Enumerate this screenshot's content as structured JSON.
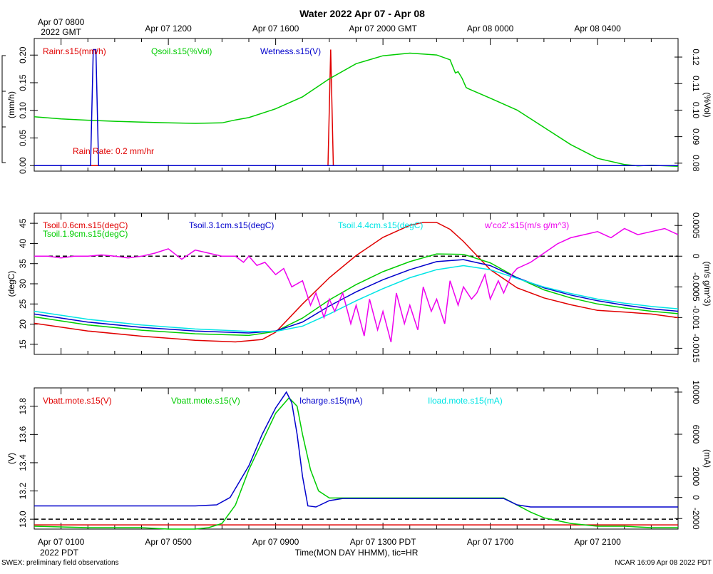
{
  "title": "Water 2022 Apr 07 - Apr 08",
  "top_axis": {
    "first_label_line1": "Apr 07 0800",
    "first_label_line2": "2022 GMT",
    "labels": [
      "Apr 07 1200",
      "Apr 07 1600",
      "Apr 07 2000 GMT",
      "Apr 08 0000",
      "Apr 08 0400"
    ]
  },
  "bottom_axis": {
    "labels": [
      "Apr 07 0100",
      "Apr 07 0500",
      "Apr 07 0900",
      "Apr 07 1300 PDT",
      "Apr 07 1700",
      "Apr 07 2100"
    ],
    "year_label": "2022 PDT",
    "xlabel": "Time(MON DAY HHMM), tic=HR"
  },
  "footer": {
    "left": "SWEX: preliminary field observations",
    "right": "NCAR 16:09 Apr 08 2022 PDT"
  },
  "colors": {
    "red": "#e00000",
    "green": "#00cc00",
    "blue": "#0000cc",
    "cyan": "#00e5e5",
    "magenta": "#ee00ee"
  },
  "chart_data": [
    {
      "type": "line",
      "x_unit": "hours since Apr 07 0000 PDT",
      "xlim": [
        0,
        24
      ],
      "ylabel_left": "(mm/h)",
      "ylabel_right": "(%Vol)",
      "ylim_left": [
        -0.01,
        0.23
      ],
      "ylim_right": [
        0.077,
        0.127
      ],
      "yticks_left": [
        "0.00",
        "0.05",
        "0.10",
        "0.15",
        "0.20"
      ],
      "yticks_right": [
        "0.08",
        "0.09",
        "0.10",
        "0.11",
        "0.12"
      ],
      "annotation": "Rain Rate: 0.2 mm/hr",
      "series": [
        {
          "name": "Rainr.s15(mm/h)",
          "color": "red",
          "axis": "left",
          "x": [
            0,
            10.95,
            11.05,
            11.15,
            24
          ],
          "y": [
            0,
            0,
            0.21,
            0,
            0
          ]
        },
        {
          "name": "Qsoil.s15(%Vol)",
          "color": "green",
          "axis": "right",
          "x": [
            0,
            1,
            2,
            3,
            4,
            5,
            6,
            7,
            7.5,
            8,
            9,
            10,
            11,
            12,
            13,
            14,
            15,
            15.5,
            15.7,
            15.8,
            15.95,
            16.1,
            16.2,
            17,
            18,
            19,
            20,
            21,
            22,
            22.5,
            23,
            24
          ],
          "y": [
            0.0975,
            0.0967,
            0.0962,
            0.0958,
            0.0955,
            0.0952,
            0.095,
            0.0952,
            0.0963,
            0.0972,
            0.1005,
            0.105,
            0.1118,
            0.1175,
            0.1205,
            0.1215,
            0.1208,
            0.119,
            0.114,
            0.1145,
            0.112,
            0.1085,
            0.108,
            0.1045,
            0.1,
            0.0935,
            0.087,
            0.0818,
            0.0795,
            0.079,
            0.0792,
            0.0788
          ]
        },
        {
          "name": "Wetness.s15(V)",
          "color": "blue",
          "axis": "left",
          "x": [
            0,
            2.1,
            2.2,
            2.3,
            2.4,
            24
          ],
          "y": [
            0,
            0,
            0.21,
            0.21,
            0,
            0
          ]
        }
      ]
    },
    {
      "type": "line",
      "x_unit": "hours since Apr 07 0000 PDT",
      "xlim": [
        0,
        24
      ],
      "ylabel_left": "(degC)",
      "ylabel_right": "(m/s g/m^3)",
      "ylim_left": [
        12.5,
        47.5
      ],
      "ylim_right": [
        -0.0016,
        0.0007
      ],
      "yticks_left": [
        "15",
        "20",
        "25",
        "30",
        "35",
        "40",
        "45"
      ],
      "yticks_right": [
        "-0.0015",
        "-0.001",
        "-0.0005",
        "0",
        "0.0005"
      ],
      "reference_line_right": 0,
      "series": [
        {
          "name": "Tsoil.0.6cm.s15(degC)",
          "color": "red",
          "axis": "left",
          "x": [
            0,
            2,
            4,
            6,
            7.5,
            8.5,
            9,
            10,
            11,
            12,
            13,
            14,
            14.5,
            15,
            15.5,
            16,
            17,
            18,
            19,
            20,
            21,
            22,
            23,
            24
          ],
          "y": [
            20.2,
            18.3,
            17,
            16,
            15.6,
            16.2,
            18,
            25,
            31.5,
            37,
            41.5,
            44.5,
            45.2,
            45.2,
            43.5,
            40.5,
            33.5,
            29,
            26.5,
            24.8,
            23.4,
            23,
            22.5,
            21.6
          ]
        },
        {
          "name": "Tsoil.1.9cm.s15(degC)",
          "color": "green",
          "axis": "left",
          "x": [
            0,
            2,
            4,
            6,
            8,
            9,
            10,
            11,
            12,
            13,
            14,
            15,
            16,
            17,
            18,
            19,
            20,
            21,
            22,
            23,
            24
          ],
          "y": [
            21.8,
            19.8,
            18.5,
            17.6,
            17.2,
            18.2,
            21.5,
            26,
            29.8,
            33,
            35.5,
            37.4,
            37.3,
            35.2,
            31.5,
            28.5,
            26.5,
            25,
            24,
            23.2,
            22.6
          ]
        },
        {
          "name": "Tsoil.3.1cm.s15(degC)",
          "color": "blue",
          "axis": "left",
          "x": [
            0,
            2,
            4,
            6,
            8,
            9,
            10,
            11,
            12,
            13,
            14,
            15,
            16,
            17,
            18,
            19,
            20,
            21,
            22,
            23,
            24
          ],
          "y": [
            22.5,
            20.5,
            19.2,
            18.3,
            17.8,
            18.3,
            20.5,
            24.5,
            28,
            31,
            33.5,
            35.5,
            36,
            34.5,
            31.5,
            29,
            27.2,
            25.8,
            24.7,
            23.8,
            23.2
          ]
        },
        {
          "name": "Tsoil.4.4cm.s15(degC)",
          "color": "cyan",
          "axis": "left",
          "x": [
            0,
            2,
            4,
            6,
            8,
            9,
            10,
            11,
            12,
            13,
            14,
            15,
            16,
            17,
            18,
            19,
            20,
            21,
            22,
            23,
            24
          ],
          "y": [
            23.2,
            21.2,
            19.8,
            18.8,
            18.2,
            18.2,
            19.5,
            22.5,
            25.8,
            28.8,
            31.5,
            33.5,
            34.5,
            33.5,
            31.3,
            29.2,
            27.6,
            26.2,
            25.2,
            24.4,
            23.8
          ]
        },
        {
          "name": "w'co2'.s15(m/s g/m^3)",
          "color": "magenta",
          "axis": "right",
          "x": [
            0,
            0.5,
            1,
            1.5,
            2,
            2.5,
            3,
            3.5,
            4,
            4.5,
            5,
            5.5,
            6,
            6.5,
            7,
            7.5,
            7.8,
            8,
            8.3,
            8.6,
            9,
            9.3,
            9.6,
            10,
            10.3,
            10.5,
            10.8,
            11,
            11.2,
            11.5,
            11.8,
            12,
            12.3,
            12.5,
            12.8,
            13,
            13.3,
            13.5,
            13.8,
            14,
            14.3,
            14.5,
            14.8,
            15,
            15.3,
            15.5,
            15.8,
            16,
            16.3,
            16.5,
            16.8,
            17,
            17.3,
            17.5,
            17.8,
            18,
            18.5,
            19,
            19.5,
            20,
            20.5,
            21,
            21.5,
            22,
            22.5,
            23,
            23.5,
            24
          ],
          "y": [
            0,
            0,
            -3e-05,
            0,
            0,
            2e-05,
            0,
            -3e-05,
            0,
            5e-05,
            0.00012,
            -5e-05,
            0.0001,
            5e-05,
            0,
            0,
            -0.0001,
            0,
            -0.00015,
            -0.0001,
            -0.0003,
            -0.0002,
            -0.0005,
            -0.0004,
            -0.0008,
            -0.0006,
            -0.001,
            -0.0007,
            -0.0009,
            -0.0006,
            -0.0011,
            -0.0008,
            -0.0013,
            -0.0007,
            -0.0012,
            -0.0009,
            -0.0014,
            -0.0006,
            -0.0011,
            -0.0008,
            -0.0012,
            -0.0005,
            -0.0009,
            -0.0007,
            -0.0011,
            -0.0004,
            -0.0008,
            -0.0005,
            -0.0007,
            -0.0006,
            -0.0003,
            -0.0007,
            -0.0004,
            -0.0006,
            -0.0003,
            -0.0002,
            -0.0001,
            5e-05,
            0.0002,
            0.0003,
            0.00035,
            0.0004,
            0.0003,
            0.00045,
            0.00035,
            0.0004,
            0.00045,
            0.00035
          ]
        }
      ]
    },
    {
      "type": "line",
      "x_unit": "hours since Apr 07 0000 PDT",
      "xlim": [
        0,
        24
      ],
      "ylabel_left": "(V)",
      "ylabel_right": "(mA)",
      "ylim_left": [
        12.93,
        13.93
      ],
      "ylim_right": [
        -3000,
        10400
      ],
      "yticks_left": [
        "13.0",
        "13.2",
        "13.4",
        "13.6",
        "13.8"
      ],
      "yticks_right": [
        "-2000",
        "0",
        "2000",
        "6000",
        "10000"
      ],
      "reference_line_left": 13.0,
      "series": [
        {
          "name": "Vbatt.mote.s15(V)",
          "color": "red",
          "axis": "left",
          "x": [
            0,
            24
          ],
          "y": [
            12.96,
            12.96
          ]
        },
        {
          "name": "Vbatt.mote.s15(V)",
          "color": "green",
          "axis": "left",
          "x": [
            0,
            2,
            3,
            4,
            5,
            6,
            6.5,
            7,
            7.5,
            8,
            8.5,
            9,
            9.5,
            9.8,
            10,
            10.3,
            10.6,
            11,
            12,
            13,
            14,
            15,
            16,
            17,
            17.5,
            18,
            18.5,
            19,
            19.5,
            20,
            21,
            22,
            23,
            24
          ],
          "y": [
            12.95,
            12.94,
            12.94,
            12.94,
            12.93,
            12.93,
            12.94,
            12.97,
            13.1,
            13.35,
            13.55,
            13.75,
            13.86,
            13.8,
            13.6,
            13.35,
            13.2,
            13.15,
            13.15,
            13.15,
            13.15,
            13.15,
            13.15,
            13.15,
            13.15,
            13.1,
            13.05,
            13.01,
            12.99,
            12.97,
            12.95,
            12.95,
            12.94,
            12.94
          ]
        },
        {
          "name": "Icharge.s15(mA)",
          "color": "blue",
          "axis": "right",
          "x": [
            0,
            2,
            4,
            6,
            6.8,
            7.3,
            8,
            8.5,
            9,
            9.4,
            9.6,
            9.8,
            10,
            10.2,
            10.5,
            11,
            11.5,
            12,
            14,
            16,
            17.5,
            18,
            18.5,
            19,
            20,
            22,
            24
          ],
          "y": [
            -800,
            -800,
            -800,
            -800,
            -700,
            0,
            3000,
            6000,
            8500,
            10000,
            9000,
            6000,
            2000,
            -800,
            -900,
            -300,
            -100,
            -100,
            -100,
            -100,
            -100,
            -700,
            -900,
            -900,
            -900,
            -900,
            -900
          ]
        },
        {
          "name": "Iload.mote.s15(mA)",
          "color": "cyan",
          "axis": "right",
          "x": [],
          "y": []
        }
      ]
    }
  ]
}
